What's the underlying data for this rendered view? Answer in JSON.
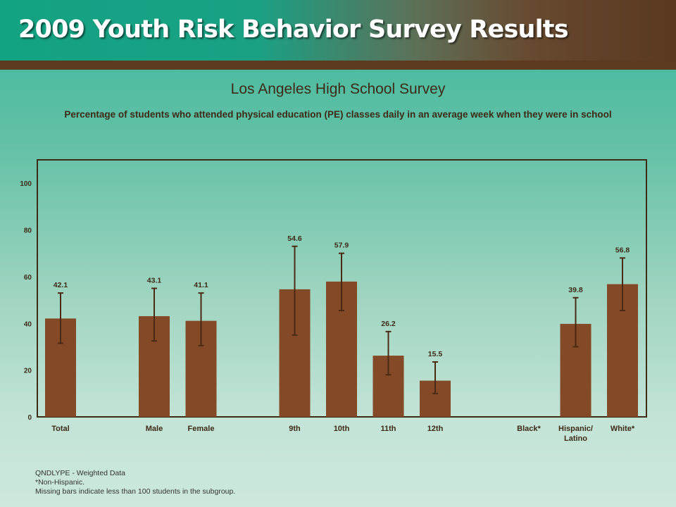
{
  "banner": {
    "title": "2009 Youth Risk Behavior Survey Results"
  },
  "colors": {
    "bar": "#844a27",
    "error_bar": "#4a2a14",
    "plot_border": "#3d2a17",
    "text": "#3d2a17"
  },
  "chart_data": {
    "type": "bar",
    "title": "Los Angeles High School Survey",
    "subtitle": "Percentage of students who attended physical education (PE) classes daily in an average week when they were in school",
    "categories": [
      "Total",
      "Male",
      "Female",
      "9th",
      "10th",
      "11th",
      "12th",
      "Black*",
      "Hispanic/\nLatino",
      "White*"
    ],
    "values": [
      42.1,
      43.1,
      41.1,
      54.6,
      57.9,
      26.2,
      15.5,
      null,
      39.8,
      56.8
    ],
    "error_low": [
      31.5,
      32.5,
      30.5,
      35,
      45.5,
      18,
      10,
      null,
      30,
      45.5
    ],
    "error_high": [
      53,
      55,
      53,
      73,
      70,
      36.5,
      23.5,
      null,
      51,
      68
    ],
    "slot_index": [
      0,
      2,
      3,
      5,
      6,
      7,
      8,
      10,
      11,
      12
    ],
    "yticks": [
      0,
      20,
      40,
      60,
      80,
      100
    ],
    "ylim": [
      0,
      110
    ],
    "xlabel": "",
    "ylabel": "",
    "grid": false
  },
  "footnotes": {
    "line1": "QNDLYPE - Weighted Data",
    "line2": "*Non-Hispanic.",
    "line3": "Missing bars indicate less than 100 students in the subgroup."
  }
}
